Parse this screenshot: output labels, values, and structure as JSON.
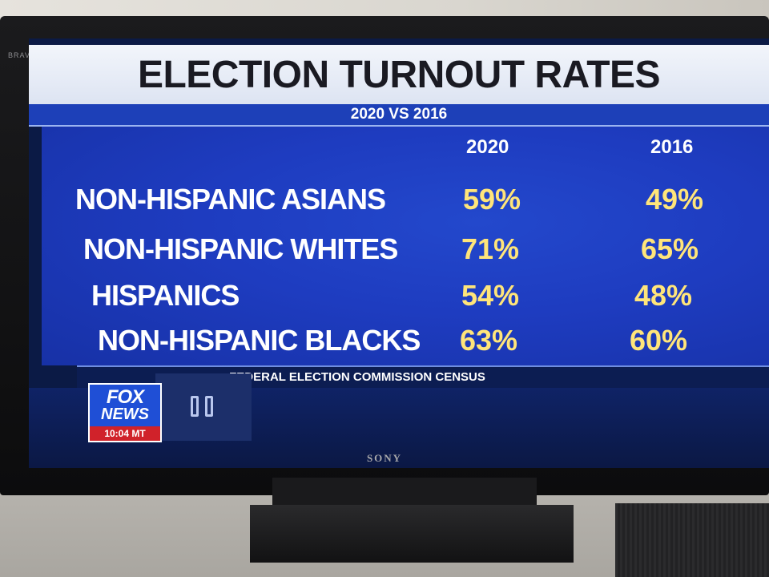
{
  "tv": {
    "corner_text": "BRAVIA",
    "brand": "SONY"
  },
  "graphic": {
    "title": "ELECTION TURNOUT RATES",
    "subtitle": "2020 VS 2016",
    "columns": [
      "2020",
      "2016"
    ],
    "rows": [
      {
        "label": "NON-HISPANIC ASIANS",
        "v2020": "59%",
        "v2016": "49%"
      },
      {
        "label": "NON-HISPANIC WHITES",
        "v2020": "71%",
        "v2016": "65%"
      },
      {
        "label": "HISPANICS",
        "v2020": "54%",
        "v2016": "48%"
      },
      {
        "label": "NON-HISPANIC BLACKS",
        "v2020": "63%",
        "v2016": "60%"
      }
    ],
    "source": "FEDERAL ELECTION COMMISSION CENSUS"
  },
  "logo": {
    "line1": "FOX",
    "line2": "NEWS",
    "time": "10:04 MT"
  },
  "icons": {
    "pause": "pause-icon"
  },
  "colors": {
    "panel_blue": "#1e3cc0",
    "value_yellow": "#ffe57a",
    "title_bg": "#e8edf7",
    "logo_red": "#d0222a"
  }
}
